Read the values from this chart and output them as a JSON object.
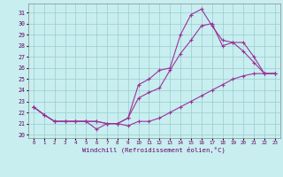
{
  "bg_color": "#c8eef0",
  "line_color": "#993399",
  "grid_color": "#99cccc",
  "xlim": [
    -0.5,
    23.5
  ],
  "ylim": [
    19.7,
    31.8
  ],
  "yticks": [
    20,
    21,
    22,
    23,
    24,
    25,
    26,
    27,
    28,
    29,
    30,
    31
  ],
  "xticks": [
    0,
    1,
    2,
    3,
    4,
    5,
    6,
    7,
    8,
    9,
    10,
    11,
    12,
    13,
    14,
    15,
    16,
    17,
    18,
    19,
    20,
    21,
    22,
    23
  ],
  "xlabel": "Windchill (Refroidissement éolien,°C)",
  "line1_x": [
    0,
    1,
    2,
    3,
    4,
    5,
    6,
    7,
    8,
    9,
    10,
    11,
    12,
    13,
    14,
    15,
    16,
    17,
    18,
    19,
    20,
    21,
    22,
    23
  ],
  "line1_y": [
    22.5,
    21.8,
    21.2,
    21.2,
    21.2,
    21.2,
    20.5,
    21.0,
    21.0,
    20.8,
    21.2,
    21.2,
    21.5,
    22.0,
    22.5,
    23.0,
    23.5,
    24.0,
    24.5,
    25.0,
    25.3,
    25.5,
    25.5,
    25.5
  ],
  "line2_x": [
    0,
    1,
    2,
    3,
    4,
    5,
    6,
    7,
    8,
    9,
    10,
    11,
    12,
    13,
    14,
    15,
    16,
    17,
    18,
    19,
    20,
    21,
    22,
    23
  ],
  "line2_y": [
    22.5,
    21.8,
    21.2,
    21.2,
    21.2,
    21.2,
    21.2,
    21.0,
    21.0,
    21.5,
    23.3,
    23.8,
    24.2,
    25.8,
    27.3,
    28.5,
    29.8,
    30.0,
    28.0,
    28.3,
    28.3,
    27.0,
    25.5,
    25.5
  ],
  "line3_x": [
    0,
    1,
    2,
    3,
    4,
    5,
    6,
    7,
    8,
    9,
    10,
    11,
    12,
    13,
    14,
    15,
    16,
    17,
    18,
    19,
    20,
    21,
    22,
    23
  ],
  "line3_y": [
    22.5,
    21.8,
    21.2,
    21.2,
    21.2,
    21.2,
    21.2,
    21.0,
    21.0,
    21.5,
    24.5,
    25.0,
    25.8,
    26.0,
    29.0,
    30.8,
    31.3,
    29.8,
    28.5,
    28.3,
    27.5,
    26.5,
    25.5,
    25.5
  ]
}
